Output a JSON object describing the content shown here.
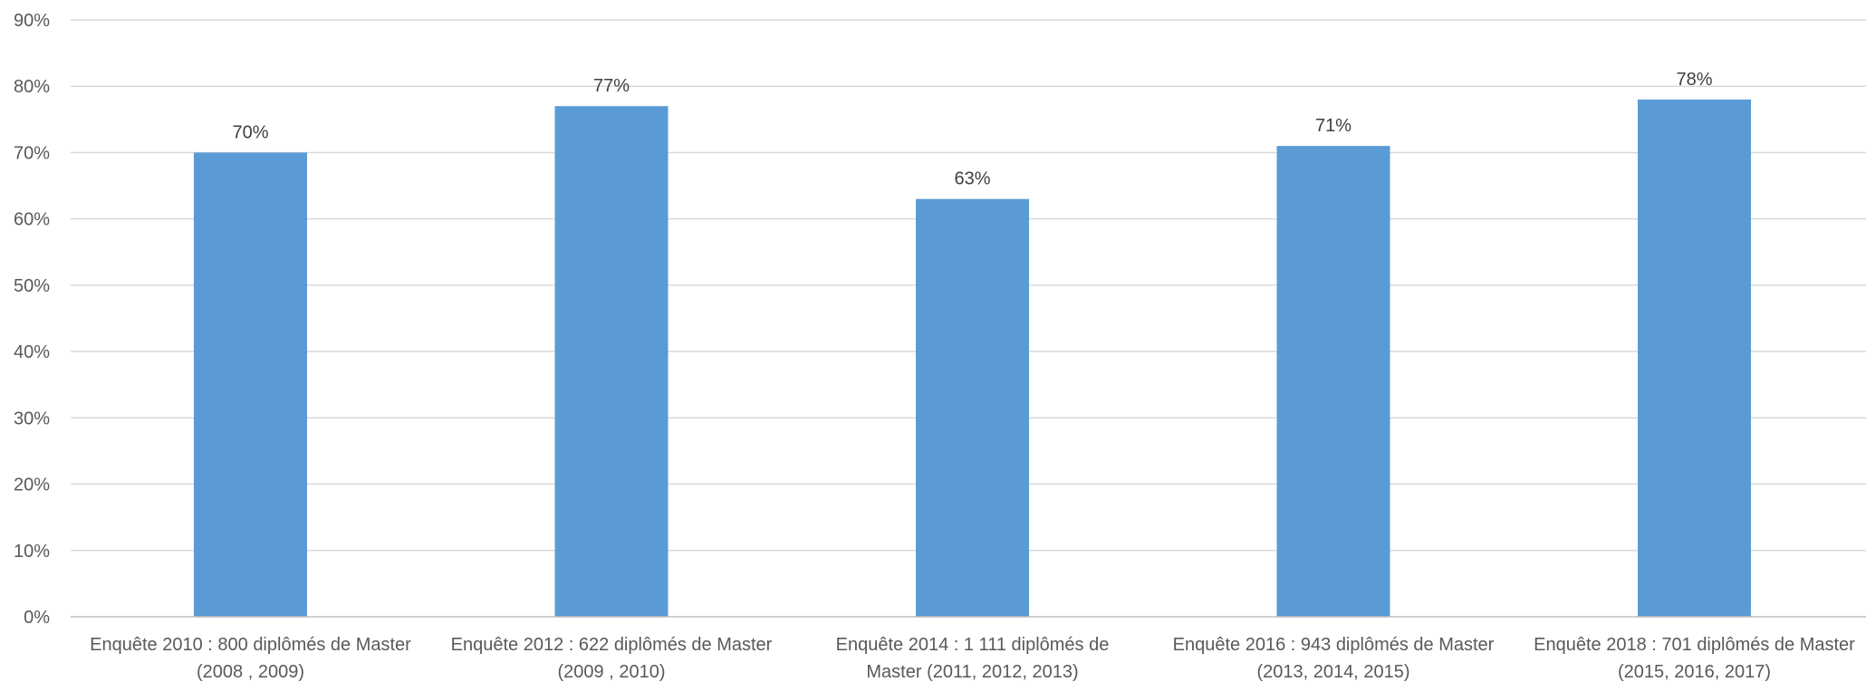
{
  "chart_data": {
    "type": "bar",
    "title": "",
    "xlabel": "",
    "ylabel": "",
    "ylim": [
      0,
      90
    ],
    "y_tick_step": 10,
    "y_tick_format": "percent",
    "grid": true,
    "legend": "none",
    "categories": [
      [
        "Enquête 2010 : 800 diplômés de Master",
        "(2008 , 2009)"
      ],
      [
        "Enquête 2012 : 622 diplômés de Master",
        "(2009 , 2010)"
      ],
      [
        "Enquête 2014 : 1 111 diplômés de",
        "Master (2011, 2012, 2013)"
      ],
      [
        "Enquête 2016 : 943 diplômés de Master",
        "(2013, 2014, 2015)"
      ],
      [
        "Enquête 2018 : 701 diplômés de Master",
        "(2015, 2016, 2017)"
      ]
    ],
    "values": [
      70,
      77,
      63,
      71,
      78
    ],
    "data_labels": [
      "70%",
      "77%",
      "63%",
      "71%",
      "78%"
    ],
    "y_tick_labels": [
      "0%",
      "10%",
      "20%",
      "30%",
      "40%",
      "50%",
      "60%",
      "70%",
      "80%",
      "90%"
    ],
    "colors": {
      "bar": "#5B9BD5",
      "grid": "#D9D9D9",
      "axis": "#BFBFBF",
      "tick_text": "#595959",
      "label_text": "#404040"
    }
  }
}
